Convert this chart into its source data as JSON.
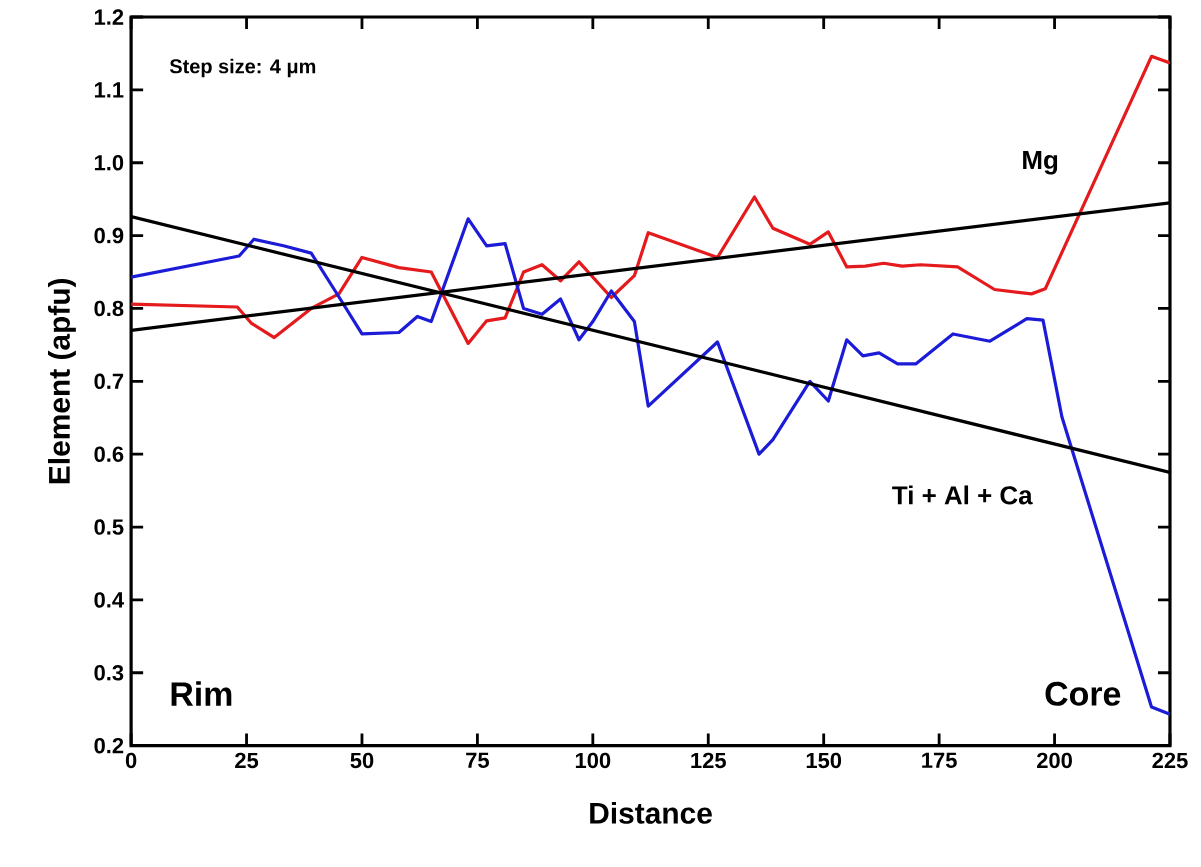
{
  "chart_data": {
    "type": "line",
    "xlabel": "Distance",
    "ylabel": "Element (apfu)",
    "annotations": [
      "Step size: 4 μm",
      "Rim",
      "Core"
    ],
    "xlim": [
      0,
      225
    ],
    "xticks": [
      0,
      25,
      50,
      75,
      100,
      125,
      150,
      175,
      200,
      225
    ],
    "ylim": [
      0.2,
      1.2
    ],
    "yticks": [
      0.2,
      0.3,
      0.4,
      0.5,
      0.6,
      0.7,
      0.8,
      0.9,
      {
        "value": 1.0,
        "label": "1.0"
      },
      1.1,
      1.2
    ],
    "grid": false,
    "legend": false,
    "marker": "none",
    "line_style": "solid",
    "series": [
      {
        "name": "Mg",
        "color": "#e41a1c",
        "x": [
          0,
          23,
          26,
          31,
          39,
          45,
          50,
          58,
          65,
          73,
          77,
          81,
          85,
          89,
          93,
          97,
          104,
          109,
          112,
          127,
          135,
          139,
          147,
          151,
          155,
          159,
          163,
          167,
          171,
          179,
          187,
          195,
          198,
          221,
          225
        ],
        "values": [
          0.806,
          0.802,
          0.78,
          0.76,
          0.8,
          0.82,
          0.87,
          0.856,
          0.85,
          0.752,
          0.783,
          0.787,
          0.85,
          0.86,
          0.838,
          0.864,
          0.815,
          0.845,
          0.904,
          0.87,
          0.953,
          0.91,
          0.888,
          0.905,
          0.857,
          0.858,
          0.862,
          0.858,
          0.86,
          0.857,
          0.826,
          0.82,
          0.827,
          1.146,
          1.137
        ]
      },
      {
        "name": "Ti + Al + Ca",
        "color": "#1c1cd8",
        "x": [
          0,
          23.4,
          26.6,
          33,
          39,
          44,
          50,
          58,
          62,
          65,
          73,
          77,
          81,
          85,
          89,
          93,
          97,
          100,
          104,
          109,
          112,
          127,
          136,
          139,
          147,
          151,
          155,
          158.5,
          162,
          166,
          170,
          178,
          186,
          194,
          197.5,
          201.6,
          221,
          225
        ],
        "values": [
          0.843,
          0.872,
          0.895,
          0.886,
          0.876,
          0.826,
          0.765,
          0.767,
          0.789,
          0.782,
          0.923,
          0.886,
          0.889,
          0.8,
          0.792,
          0.813,
          0.757,
          0.782,
          0.824,
          0.782,
          0.666,
          0.754,
          0.6,
          0.62,
          0.7,
          0.673,
          0.757,
          0.735,
          0.739,
          0.724,
          0.724,
          0.765,
          0.755,
          0.786,
          0.784,
          0.651,
          0.253,
          0.243
        ]
      },
      {
        "type": "line",
        "color": "#000000",
        "x": [
          0,
          225
        ],
        "values": [
          0.77,
          0.945
        ]
      },
      {
        "type": "line",
        "color": "#000000",
        "x": [
          0,
          225
        ],
        "values": [
          0.926,
          0.575
        ]
      }
    ]
  }
}
